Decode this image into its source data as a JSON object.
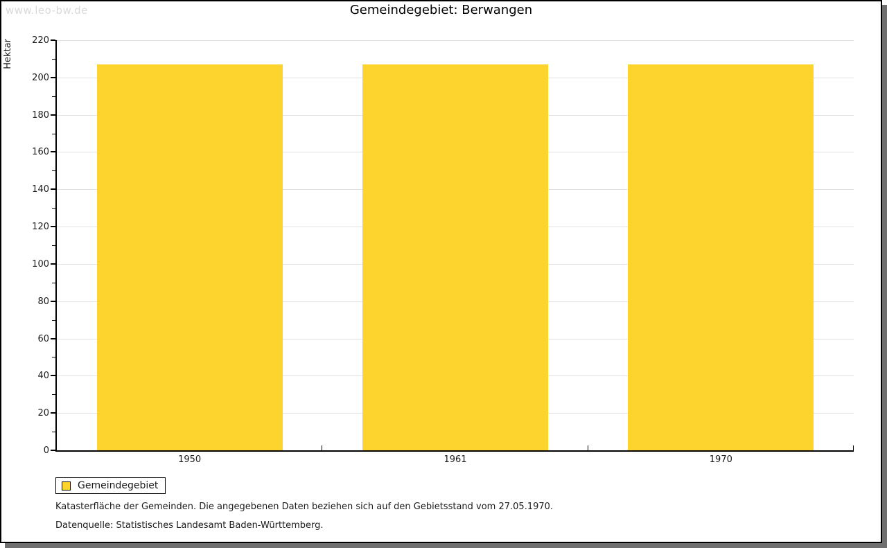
{
  "watermark": "www.leo-bw.de",
  "title": "Gemeindegebiet: Berwangen",
  "chart_data": {
    "type": "bar",
    "title": "Gemeindegebiet: Berwangen",
    "categories": [
      "1950",
      "1961",
      "1970"
    ],
    "series": [
      {
        "name": "Gemeindegebiet",
        "values": [
          207,
          207,
          207
        ]
      }
    ],
    "xlabel": "",
    "ylabel": "Hektar",
    "ylim": [
      0,
      220
    ],
    "ytick_step": 20,
    "yminor_step": 10,
    "grid": true,
    "legend_position": "bottom-left",
    "bar_color": "#fcd42d",
    "bar_width_fraction": 0.7
  },
  "legend": {
    "items": [
      {
        "label": "Gemeindegebiet",
        "color": "#fcd42d"
      }
    ]
  },
  "notes": [
    "Katasterfläche der Gemeinden. Die angegebenen Daten beziehen sich auf den Gebietsstand vom 27.05.1970.",
    "Datenquelle: Statistisches Landesamt Baden-Württemberg."
  ],
  "colors": {
    "bar": "#fcd42d",
    "gridline": "#e2e2e2",
    "axis": "#000000",
    "shadow": "#6f6f6f",
    "watermark": "#d9d9d9",
    "text": "#1a1a1a"
  }
}
